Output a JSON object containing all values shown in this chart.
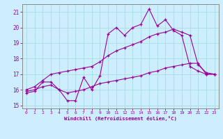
{
  "xlabel": "Windchill (Refroidissement éolien,°C)",
  "bg_color": "#cceeff",
  "grid_color": "#aadddd",
  "line_color": "#990099",
  "xlim": [
    -0.5,
    23.5
  ],
  "ylim": [
    14.8,
    21.5
  ],
  "yticks": [
    15,
    16,
    17,
    18,
    19,
    20,
    21
  ],
  "xticks": [
    0,
    1,
    2,
    3,
    4,
    5,
    6,
    7,
    8,
    9,
    10,
    11,
    12,
    13,
    14,
    15,
    16,
    17,
    18,
    19,
    20,
    21,
    22,
    23
  ],
  "line1_x": [
    0,
    1,
    2,
    3,
    4,
    5,
    6,
    7,
    8,
    9,
    10,
    11,
    12,
    13,
    14,
    15,
    16,
    17,
    18,
    19,
    20,
    21,
    22,
    23
  ],
  "line1_y": [
    15.8,
    15.9,
    16.5,
    16.5,
    16.0,
    15.3,
    15.3,
    16.8,
    16.0,
    16.9,
    19.6,
    20.0,
    19.5,
    20.0,
    20.2,
    21.2,
    20.1,
    20.5,
    19.8,
    19.5,
    17.5,
    17.2,
    17.0,
    17.0
  ],
  "line2_x": [
    0,
    1,
    2,
    3,
    4,
    5,
    6,
    7,
    8,
    9,
    10,
    11,
    12,
    13,
    14,
    15,
    16,
    17,
    18,
    19,
    20,
    21,
    22,
    23
  ],
  "line2_y": [
    16.0,
    16.2,
    16.6,
    17.0,
    17.1,
    17.2,
    17.3,
    17.4,
    17.5,
    17.8,
    18.2,
    18.5,
    18.7,
    18.9,
    19.1,
    19.4,
    19.6,
    19.7,
    19.9,
    19.7,
    19.5,
    17.6,
    17.1,
    17.0
  ],
  "line3_x": [
    0,
    1,
    2,
    3,
    4,
    5,
    6,
    7,
    8,
    9,
    10,
    11,
    12,
    13,
    14,
    15,
    16,
    17,
    18,
    19,
    20,
    21,
    22,
    23
  ],
  "line3_y": [
    15.9,
    16.0,
    16.2,
    16.3,
    16.0,
    15.8,
    15.9,
    16.0,
    16.2,
    16.4,
    16.5,
    16.6,
    16.7,
    16.8,
    16.9,
    17.1,
    17.2,
    17.4,
    17.5,
    17.6,
    17.7,
    17.7,
    17.0,
    17.0
  ]
}
